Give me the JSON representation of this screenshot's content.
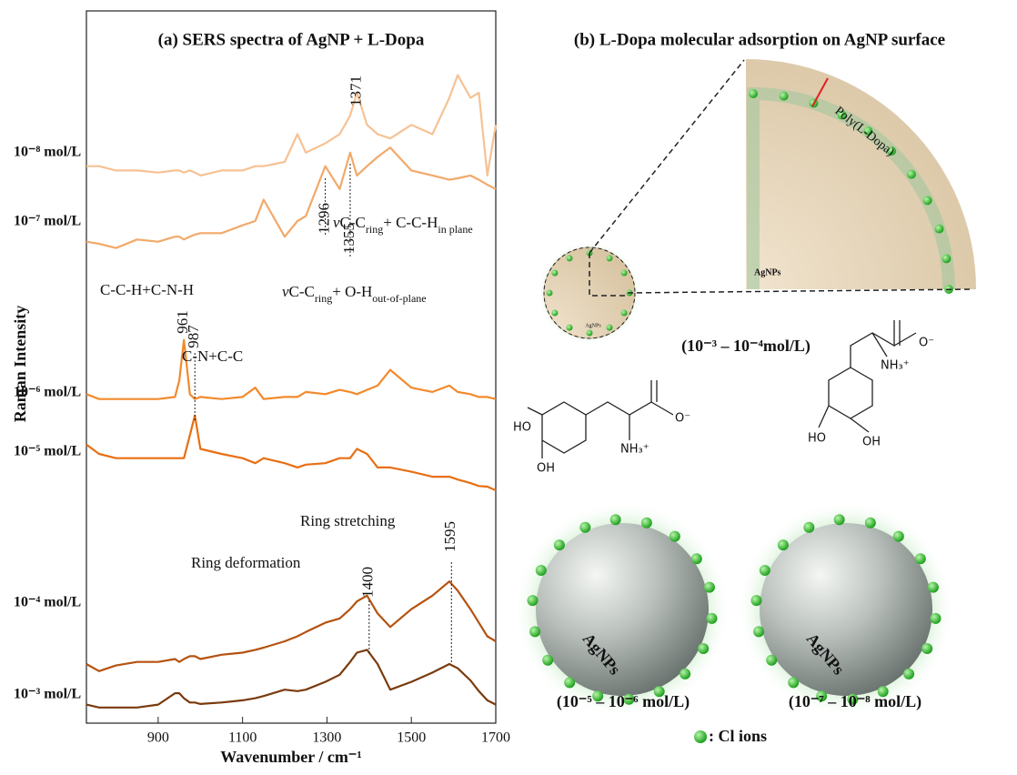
{
  "chart_data": {
    "type": "line",
    "title": "(a) SERS spectra of AgNP + L-Dopa",
    "xlabel": "Wavenumber / cm⁻¹",
    "ylabel": "Raman Intensity",
    "xlim": [
      730,
      1700
    ],
    "xticks": [
      900,
      1100,
      1300,
      1500,
      1700
    ],
    "ylim": [
      0,
      100
    ],
    "x": [
      730,
      760,
      800,
      850,
      900,
      940,
      950,
      961,
      975,
      987,
      1000,
      1050,
      1100,
      1130,
      1150,
      1200,
      1230,
      1250,
      1296,
      1330,
      1355,
      1371,
      1395,
      1420,
      1450,
      1500,
      1550,
      1590,
      1610,
      1640,
      1660,
      1680,
      1700
    ],
    "series": [
      {
        "name": "10⁻⁸ mol/L",
        "color": "#f6c294",
        "values": [
          78.2,
          78.2,
          77.6,
          77.6,
          77.3,
          77.6,
          77.6,
          77.3,
          77.6,
          77.3,
          76.9,
          77.6,
          77.6,
          78.2,
          78.2,
          78.8,
          82.7,
          80.1,
          81.4,
          82.7,
          85.3,
          88.5,
          84.0,
          82.7,
          82.1,
          84.0,
          82.7,
          87.8,
          91.0,
          87.8,
          88.5,
          76.9,
          84.0
        ]
      },
      {
        "name": "10⁻⁷ mol/L",
        "color": "#f2a96a",
        "values": [
          67.6,
          67.3,
          66.7,
          67.9,
          67.6,
          68.3,
          68.3,
          67.9,
          68.3,
          68.6,
          68.8,
          68.8,
          69.9,
          70.5,
          73.5,
          68.3,
          70.5,
          71.2,
          78.2,
          75.0,
          80.1,
          76.9,
          78.2,
          79.5,
          80.8,
          77.6,
          76.9,
          76.3,
          76.5,
          76.9,
          76.3,
          75.6,
          75.0
        ]
      },
      {
        "name": "10⁻⁶ mol/L",
        "color": "#f28a2c",
        "values": [
          46.2,
          45.5,
          45.5,
          45.5,
          45.5,
          45.8,
          48.1,
          53.8,
          46.2,
          45.5,
          45.8,
          45.5,
          45.8,
          47.1,
          45.5,
          45.8,
          45.8,
          46.5,
          46.2,
          46.8,
          46.5,
          46.2,
          46.8,
          47.4,
          49.6,
          47.1,
          46.5,
          47.4,
          46.5,
          46.2,
          45.8,
          45.8,
          45.5
        ]
      },
      {
        "name": "10⁻⁵ mol/L",
        "color": "#e86f12",
        "values": [
          39.1,
          37.8,
          37.2,
          37.2,
          37.2,
          37.2,
          37.2,
          37.2,
          40.4,
          43.2,
          38.5,
          37.8,
          37.2,
          36.5,
          37.2,
          36.5,
          35.9,
          36.3,
          36.5,
          37.2,
          37.2,
          38.5,
          37.8,
          35.9,
          35.9,
          35.3,
          34.6,
          34.6,
          34.2,
          33.7,
          33.3,
          33.2,
          32.7
        ]
      },
      {
        "name": "10⁻⁴ mol/L",
        "color": "#b5520f",
        "values": [
          8.3,
          7.3,
          8.1,
          8.6,
          8.6,
          9.0,
          8.6,
          9.0,
          9.4,
          9.4,
          9.0,
          9.6,
          9.9,
          10.3,
          10.6,
          11.5,
          12.2,
          12.8,
          14.1,
          14.7,
          16.0,
          17.1,
          17.9,
          15.4,
          13.5,
          16.0,
          17.9,
          19.9,
          18.6,
          16.0,
          14.1,
          12.2,
          11.5
        ]
      },
      {
        "name": "10⁻³ mol/L",
        "color": "#7a3a0c",
        "values": [
          2.6,
          2.2,
          2.2,
          2.2,
          2.6,
          4.2,
          4.2,
          3.5,
          2.9,
          2.9,
          2.7,
          2.9,
          3.2,
          3.5,
          3.8,
          4.7,
          4.5,
          4.7,
          5.8,
          6.8,
          8.6,
          9.9,
          10.3,
          8.3,
          4.7,
          5.8,
          7.1,
          8.3,
          7.7,
          6.0,
          4.5,
          3.2,
          2.6
        ]
      }
    ],
    "peak_labels": [
      1371,
      1296,
      1355,
      961,
      987,
      1400,
      1595
    ],
    "annotations": [
      {
        "parts": [
          {
            "text": "C-C-H+C-N-H"
          }
        ]
      },
      {
        "parts": [
          {
            "text": "ν",
            "italic": true
          },
          {
            "text": "C-C"
          },
          {
            "text": "ring",
            "sub": true
          },
          {
            "text": "+ O-H"
          },
          {
            "text": "out-of-plane",
            "sub": true
          }
        ]
      },
      {
        "parts": [
          {
            "text": "ν",
            "italic": true
          },
          {
            "text": "C-C"
          },
          {
            "text": "ring",
            "sub": true
          },
          {
            "text": "+ C-C-H"
          },
          {
            "text": "in plane",
            "sub": true
          }
        ]
      },
      {
        "parts": [
          {
            "text": "C-N+C-C"
          }
        ]
      },
      {
        "parts": [
          {
            "text": "Ring stretching"
          }
        ]
      },
      {
        "parts": [
          {
            "text": "Ring deformation"
          }
        ]
      }
    ]
  },
  "diagram": {
    "title": "(b) L-Dopa molecular adsorption on AgNP surface",
    "poly_label": "Poly(L-Dopa)",
    "particle_labels": [
      "AgNPs",
      "AgNPs",
      "AgNPs",
      "AgNPs"
    ],
    "range_labels": [
      "(10⁻³ – 10⁻⁴mol/L)",
      "(10⁻⁵ – 10⁻⁶ mol/L)",
      "(10⁻⁷ – 10⁻⁸ mol/L)"
    ],
    "molecule_labels": [
      "HO",
      "OH",
      "NH₃⁺",
      "O⁻",
      "O⁻",
      "NH₃⁺",
      "HO",
      "OH"
    ],
    "ion_legend": ": Cl ions"
  }
}
